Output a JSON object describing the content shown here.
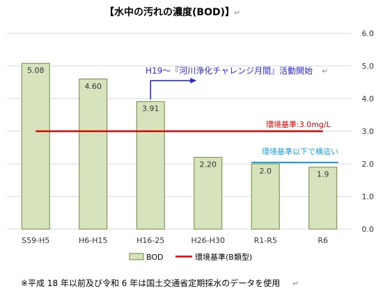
{
  "chart_data": {
    "type": "bar",
    "title": "【水中の汚れの濃度(BOD)】",
    "categories": [
      "S59-H5",
      "H6-H15",
      "H16-25",
      "H26-H30",
      "R1-R5",
      "R6"
    ],
    "series": [
      {
        "name": "BOD",
        "values": [
          5.08,
          4.6,
          3.91,
          2.2,
          2.0,
          1.9
        ],
        "labels": [
          "5.08",
          "4.60",
          "3.91",
          "2.20",
          "2.0",
          "1.9"
        ],
        "color": "#d6e3bc",
        "border": "#6a8a3a"
      }
    ],
    "standard_line": {
      "name": "環境基準(B類型)",
      "value": 3.0,
      "color": "#e00000"
    },
    "target_line": {
      "value": 2.0,
      "color": "#1aa0e0",
      "from_category": 4
    },
    "ylim": [
      0,
      6
    ],
    "yticks": [
      "0.0",
      "1.0",
      "2.0",
      "3.0",
      "4.0",
      "5.0",
      "6.0"
    ],
    "grid": true,
    "annotations": {
      "challenge": "H19～『河川浄化チャレンジ月間』活動開始",
      "standard": "環境基準:3.0mg/L",
      "below_standard": "環境基準以下で横這い"
    },
    "legend_position": "bottom"
  },
  "footnote": "※平成 18 年以前及び令和 6 年は国土交通省定期採水のデータを使用",
  "edit_mark": "↵",
  "colors": {
    "blue_arrow": "#2b2bd6",
    "grid": "#d9d9d9"
  }
}
